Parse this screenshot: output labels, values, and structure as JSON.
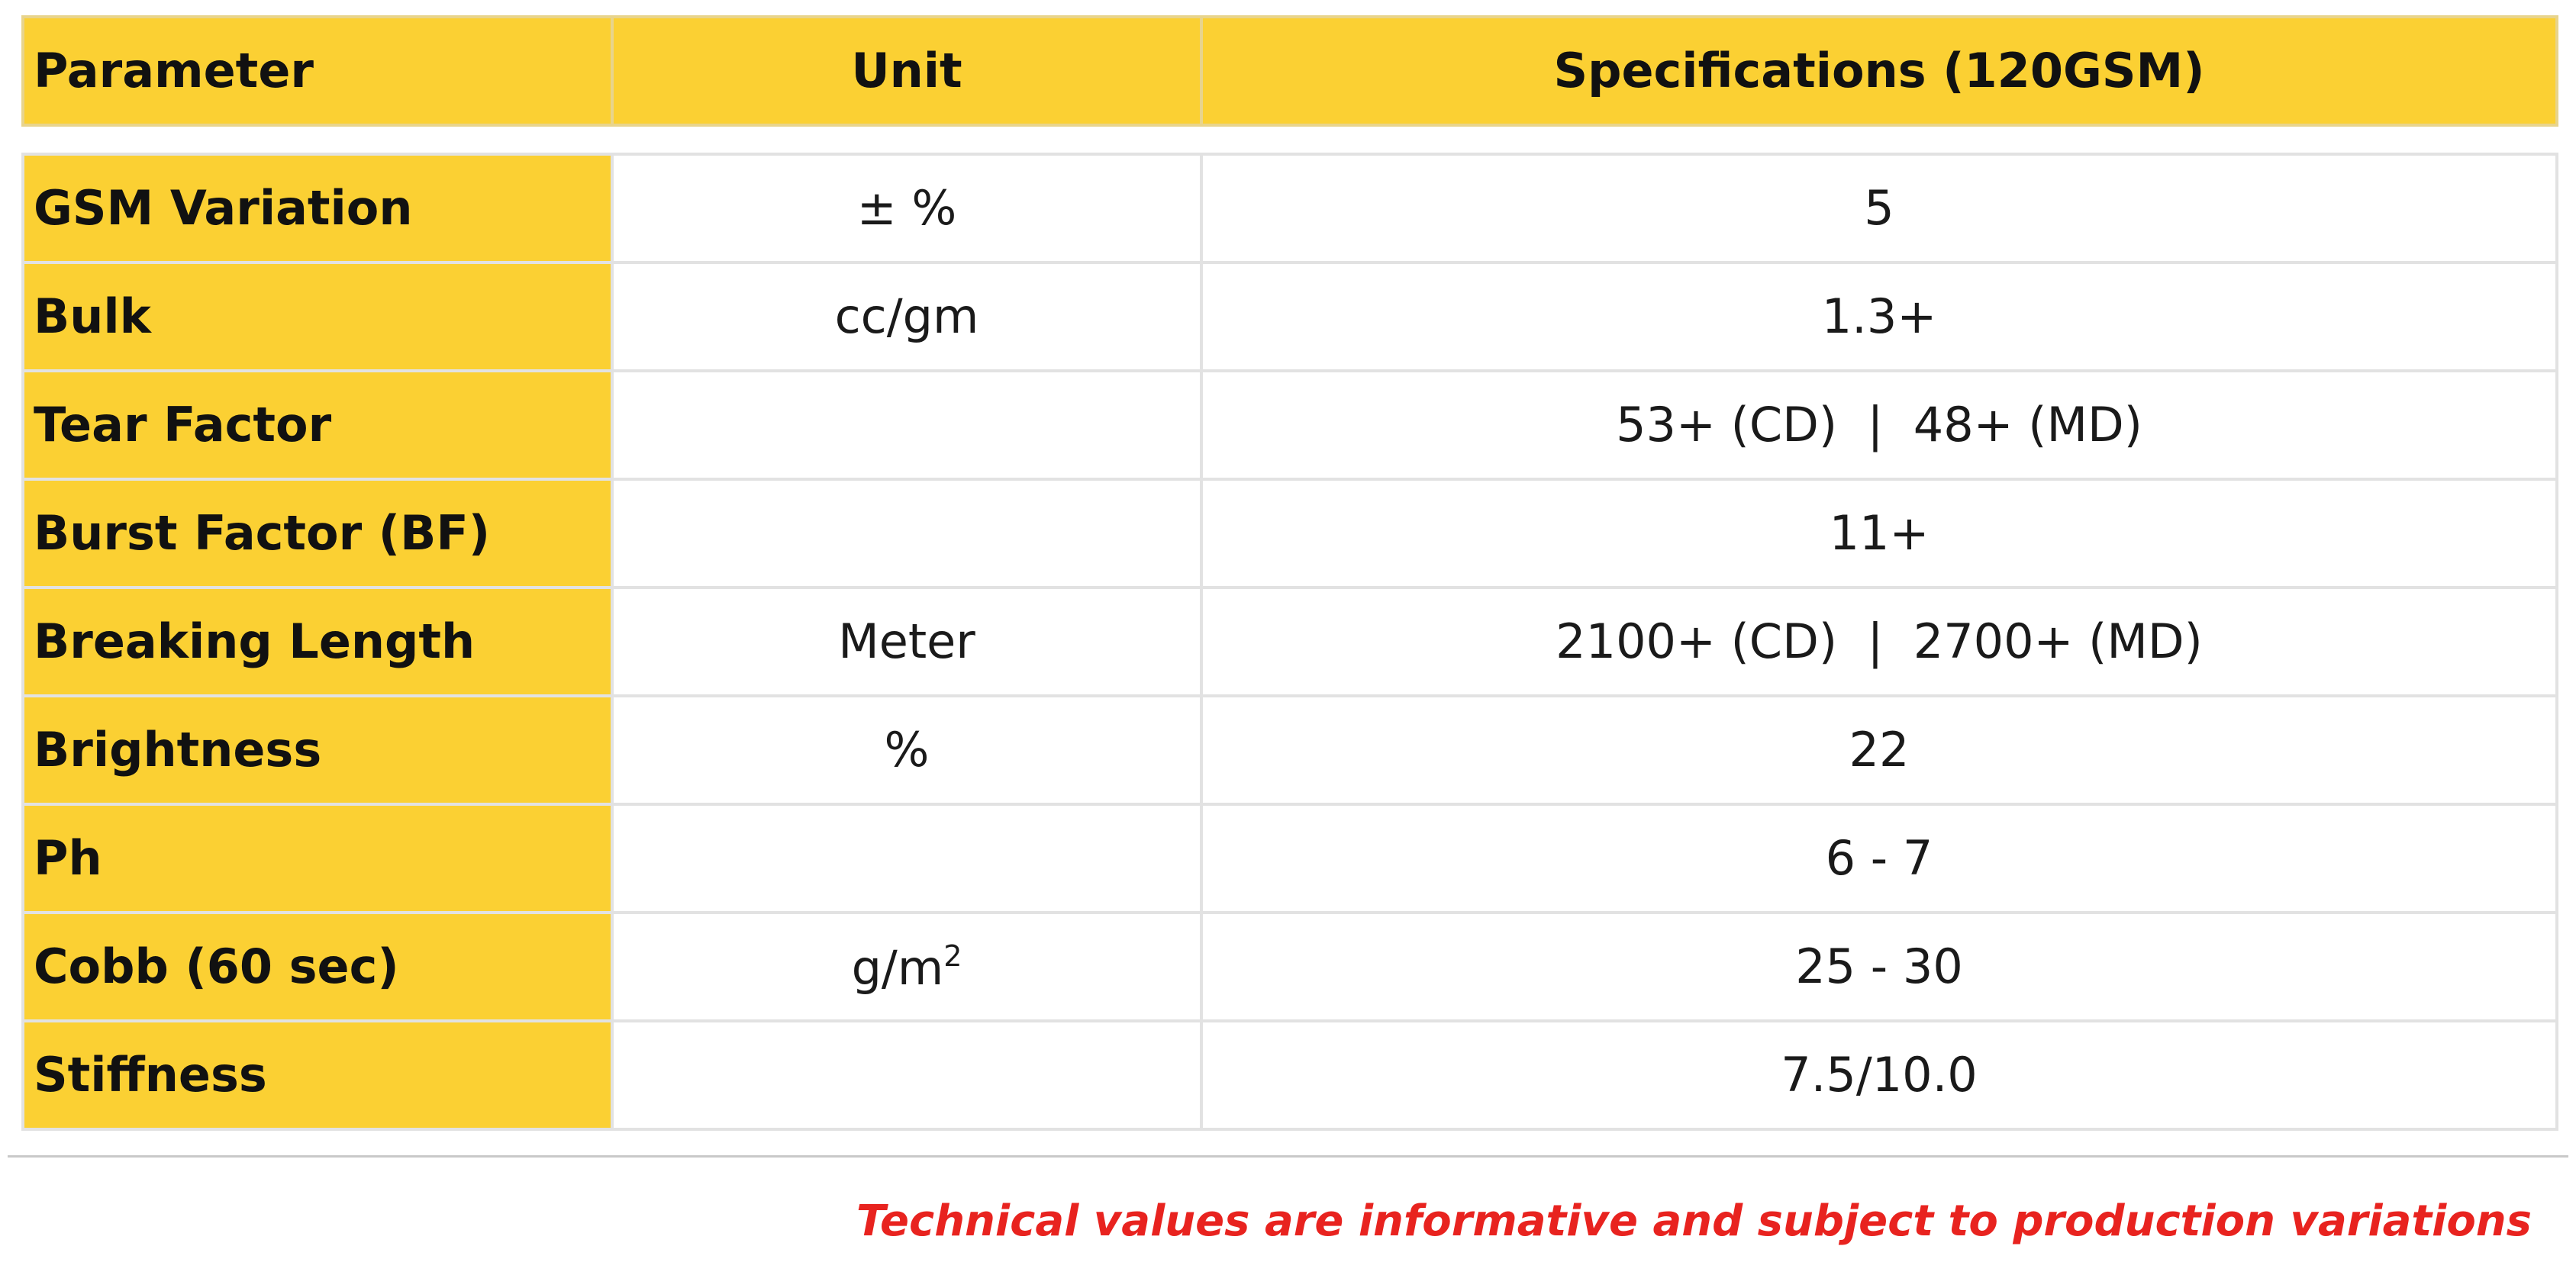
{
  "header": {
    "parameter": "Parameter",
    "unit": "Unit",
    "specifications": "Specifications (120GSM)"
  },
  "rows": [
    {
      "parameter": "GSM Variation",
      "unit": "± %",
      "value": "5"
    },
    {
      "parameter": "Bulk",
      "unit": "cc/gm",
      "value": "1.3+"
    },
    {
      "parameter": "Tear Factor",
      "unit": "",
      "value": "53+ (CD)  |  48+ (MD)"
    },
    {
      "parameter": "Burst Factor (BF)",
      "unit": "",
      "value": "11+"
    },
    {
      "parameter": "Breaking Length",
      "unit": "Meter",
      "value": "2100+ (CD)  |  2700+ (MD)"
    },
    {
      "parameter": "Brightness",
      "unit": "%",
      "value": "22"
    },
    {
      "parameter": "Ph",
      "unit": "",
      "value": "6 - 7"
    },
    {
      "parameter": "Cobb (60 sec)",
      "unit": "g/m",
      "unit_sup": "2",
      "value": "25 - 30"
    },
    {
      "parameter": "Stiffness",
      "unit": "",
      "value": "7.5/10.0"
    }
  ],
  "footer": {
    "note": "Technical values are informative and subject to production variations"
  },
  "colors": {
    "header_bg": "#fbd033",
    "note": "#e8231f",
    "border": "#e2e2e2"
  }
}
